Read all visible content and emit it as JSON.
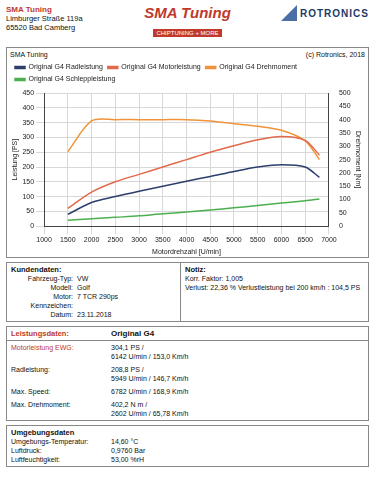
{
  "header": {
    "company": "SMA Tuning",
    "address": [
      "Limburger Straße 119a",
      "65520 Bad Camberg"
    ],
    "logo": "SMA Tuning",
    "logo_tagline": "CHIPTUNING + MORE",
    "partner_logo": "ROTRONICS"
  },
  "chart_data": {
    "type": "line",
    "title": "SMA Tuning",
    "subtitle": "(c) Rotronics, 2018",
    "x_label": "Motordrehzahl [U/min]",
    "y_label": "Leistung [PS]",
    "y2_label": "Drehmoment [Nm]",
    "x": [
      1500,
      2000,
      2500,
      3000,
      3500,
      4000,
      4500,
      5000,
      5500,
      6000,
      6500,
      6800
    ],
    "series": [
      {
        "name": "Original G4 Radleistung",
        "color": "#2c3e6b",
        "marker": "none",
        "values": [
          40,
          80,
          100,
          118,
          135,
          152,
          168,
          185,
          200,
          208,
          200,
          165
        ]
      },
      {
        "name": "Original G4 Motorleistung",
        "color": "#e2694a",
        "marker": "none",
        "values": [
          60,
          115,
          150,
          175,
          200,
          225,
          250,
          272,
          292,
          303,
          290,
          240
        ]
      },
      {
        "name": "Original G4 Drehmoment",
        "color": "#f0933a",
        "marker": "none",
        "axis": "y2",
        "values": [
          280,
          395,
          400,
          400,
          400,
          400,
          395,
          385,
          375,
          360,
          320,
          250
        ]
      },
      {
        "name": "Original G4 Schleppleistung",
        "color": "#4caf50",
        "marker": "none",
        "values": [
          20,
          25,
          30,
          35,
          42,
          48,
          55,
          62,
          70,
          78,
          86,
          92
        ]
      }
    ],
    "xlim": [
      1000,
      7000
    ],
    "xticks": [
      1000,
      1500,
      2000,
      2500,
      3000,
      3500,
      4000,
      4500,
      5000,
      5500,
      6000,
      6500,
      7000
    ],
    "ylim": [
      0,
      450
    ],
    "yticks": [
      0,
      50,
      100,
      150,
      200,
      250,
      300,
      350,
      400,
      450
    ],
    "y2lim": [
      0,
      500
    ],
    "y2ticks": [
      0,
      50,
      100,
      150,
      200,
      250,
      300,
      350,
      400,
      450,
      500
    ],
    "grid": true,
    "legend": "top"
  },
  "customer": {
    "title": "Kundendaten:",
    "rows": [
      [
        "Fahrzeug-Typ:",
        "VW"
      ],
      [
        "Modell:",
        "Golf"
      ],
      [
        "Motor:",
        "7 TCR 290ps"
      ],
      [
        "Kennzeichen:"
      ],
      [
        "Datum:",
        "23.11.2018"
      ]
    ]
  },
  "note": {
    "title": "Notiz:",
    "lines": [
      "Korr. Faktor: 1,005",
      "Verlust: 22,36 %  Verlustleistung bei 200 km/h : 104,5 PS"
    ]
  },
  "performance": {
    "title": "Leistungsdaten:",
    "column": "Original G4",
    "rows": [
      {
        "label": "Motorleistung EWG:",
        "lines": [
          "304,1 PS /",
          "6142 U/min / 153,0 Km/h"
        ]
      },
      {
        "label": "Radleistung:",
        "lines": [
          "208,8 PS /",
          "5949 U/min / 146,7 Km/h"
        ]
      },
      {
        "label": "Max. Speed:",
        "lines": [
          "6782 U/min / 168,9 Km/h"
        ]
      },
      {
        "label": "Max. Drehmoment:",
        "lines": [
          "402,2 N m /",
          "2602 U/min / 65,78 Km/h"
        ]
      }
    ]
  },
  "environment": {
    "title": "Umgebungsdaten",
    "rows": [
      [
        "Umgebungs-Temperatur:",
        "14,60 °C"
      ],
      [
        "Luftdruck:",
        "0,9760 Bar"
      ],
      [
        "Luftfeuchtigkeit:",
        "53,00 %rH"
      ]
    ]
  }
}
